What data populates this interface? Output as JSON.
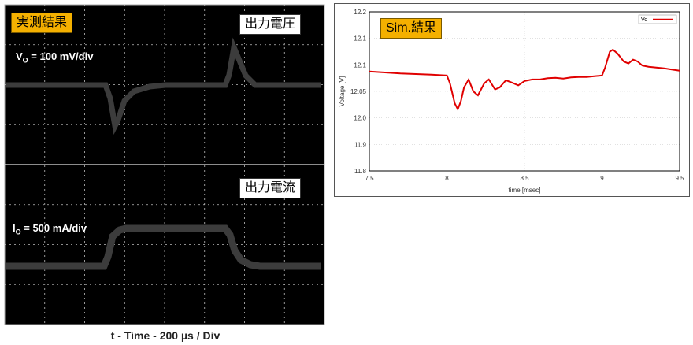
{
  "chart_data": [
    {
      "type": "line",
      "x_axis_label": "t - Time - 200 µs / Div",
      "badges": {
        "main": "実測結果",
        "voltage": "出力電圧",
        "current": "出力電流"
      },
      "traces": [
        {
          "channel_label": "V",
          "channel_sub": "O",
          "scale_text": " = 100 mV/div"
        },
        {
          "channel_label": "I",
          "channel_sub": "O",
          "scale_text": " = 500 mA/div"
        }
      ],
      "colors": {
        "screen": "#000000",
        "trace": "#3a3a3a",
        "badge": "#f4b000"
      }
    },
    {
      "type": "line",
      "badge": "Sim.結果",
      "xlabel": "time [msec]",
      "ylabel": "Voltage [V]",
      "xlim": [
        7.5,
        9.5
      ],
      "ylim": [
        11.8,
        12.2
      ],
      "x_ticks": [
        "7.5",
        "8",
        "8.5",
        "9",
        "9.5"
      ],
      "y_ticks": [
        "11.8",
        "11.9",
        "12.0",
        "12.05",
        "12.1",
        "12.1",
        "12.2"
      ],
      "grid": true,
      "legend_position": "top-right",
      "series": [
        {
          "name": "Vo",
          "color": "#e00000",
          "x": [
            7.5,
            7.7,
            7.9,
            8.0,
            8.02,
            8.05,
            8.07,
            8.09,
            8.11,
            8.14,
            8.17,
            8.2,
            8.24,
            8.27,
            8.31,
            8.34,
            8.38,
            8.42,
            8.46,
            8.5,
            8.55,
            8.6,
            8.65,
            8.7,
            8.75,
            8.8,
            8.85,
            8.9,
            8.95,
            9.0,
            9.02,
            9.05,
            9.07,
            9.1,
            9.14,
            9.17,
            9.2,
            9.23,
            9.26,
            9.3,
            9.35,
            9.4,
            9.45,
            9.5
          ],
          "y": [
            12.05,
            12.045,
            12.042,
            12.04,
            12.02,
            11.97,
            11.955,
            11.975,
            12.01,
            12.03,
            12.0,
            11.99,
            12.02,
            12.03,
            12.005,
            12.01,
            12.028,
            12.022,
            12.015,
            12.026,
            12.03,
            12.03,
            12.033,
            12.034,
            12.032,
            12.035,
            12.036,
            12.036,
            12.038,
            12.04,
            12.06,
            12.1,
            12.105,
            12.095,
            12.075,
            12.07,
            12.08,
            12.075,
            12.065,
            12.062,
            12.06,
            12.058,
            12.055,
            12.052
          ]
        }
      ]
    }
  ]
}
